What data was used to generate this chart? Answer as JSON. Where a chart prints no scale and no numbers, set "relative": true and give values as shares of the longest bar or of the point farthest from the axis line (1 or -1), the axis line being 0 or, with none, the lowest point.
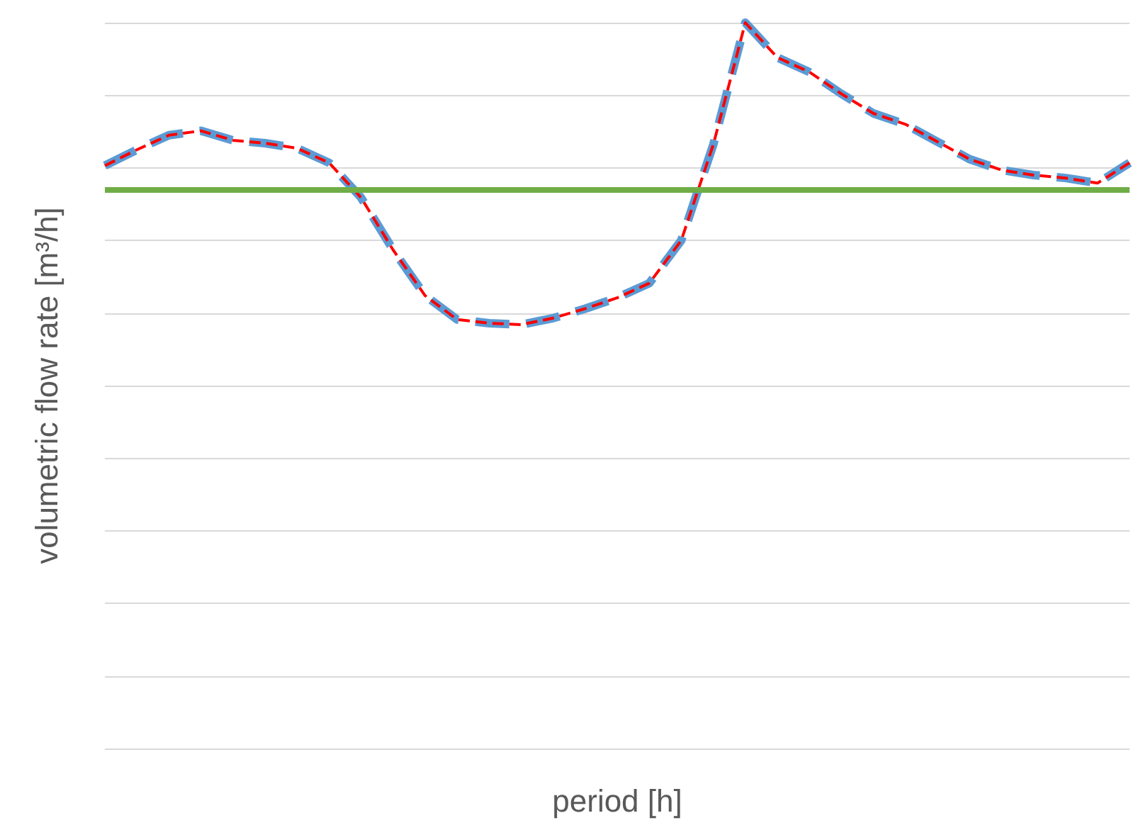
{
  "chart_data": {
    "type": "line",
    "relative": true,
    "xlabel": "period [h]",
    "ylabel": "volumetric flow rate [m³/h]",
    "grid": "y",
    "marker": "none",
    "categories": [
      null,
      null,
      null,
      null,
      null,
      null,
      null,
      null,
      null,
      null,
      null,
      null,
      null,
      null,
      null,
      null,
      null,
      null,
      null,
      null,
      null,
      null,
      null,
      null,
      null,
      null,
      null,
      null,
      null,
      null,
      null,
      null,
      null
    ],
    "series": [
      {
        "color": "#5b9bd5",
        "line_style": "dashed",
        "values": [
          0.803,
          0.825,
          0.845,
          0.851,
          0.838,
          0.834,
          0.827,
          0.807,
          0.759,
          0.687,
          0.624,
          0.591,
          0.586,
          0.584,
          0.593,
          0.606,
          0.621,
          0.641,
          0.7,
          0.832,
          1,
          0.952,
          0.932,
          0.902,
          0.875,
          0.86,
          0.836,
          0.812,
          0.797,
          0.79,
          0.786,
          0.779,
          0.807
        ]
      },
      {
        "color": "#ff0000",
        "line_style": "dashed",
        "values": [
          0.803,
          0.825,
          0.845,
          0.851,
          0.838,
          0.834,
          0.827,
          0.807,
          0.759,
          0.687,
          0.624,
          0.591,
          0.586,
          0.584,
          0.593,
          0.606,
          0.621,
          0.641,
          0.7,
          0.832,
          1,
          0.952,
          0.932,
          0.902,
          0.875,
          0.86,
          0.836,
          0.812,
          0.797,
          0.79,
          0.786,
          0.779,
          0.807
        ]
      }
    ],
    "ref_lines": [
      {
        "axis": "y",
        "value": 0.772,
        "color": "#70ad47",
        "line_style": "solid"
      }
    ]
  }
}
